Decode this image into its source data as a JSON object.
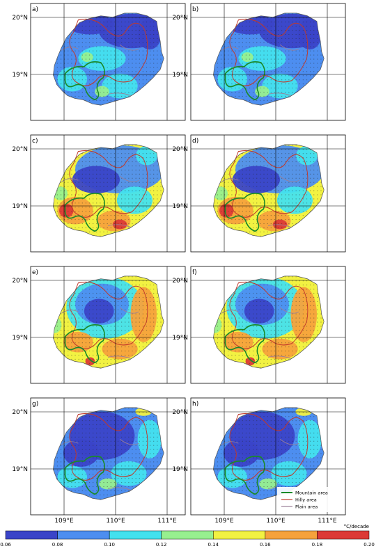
{
  "panels": [
    {
      "label": "a)",
      "variant": 0
    },
    {
      "label": "b)",
      "variant": 0
    },
    {
      "label": "c)",
      "variant": 1
    },
    {
      "label": "d)",
      "variant": 1
    },
    {
      "label": "e)",
      "variant": 2
    },
    {
      "label": "f)",
      "variant": 2
    },
    {
      "label": "g)",
      "variant": 3
    },
    {
      "label": "h)",
      "variant": 3
    }
  ],
  "axes": {
    "lat_labels": [
      "20°N",
      "19°N"
    ],
    "lon_labels": [
      "109°E",
      "110°E",
      "111°E"
    ]
  },
  "legend": {
    "items": [
      {
        "label": "Mountain area",
        "color": "#1a8a2a"
      },
      {
        "label": "Hilly area",
        "color": "#c0392b"
      },
      {
        "label": "Plain area",
        "color": "#9a7f96"
      }
    ]
  },
  "colorbar": {
    "unit": "°C/decade",
    "ticks": [
      "0.06",
      "0.08",
      "0.10",
      "0.12",
      "0.14",
      "0.16",
      "0.18",
      "0.20"
    ],
    "colors": [
      "#3a44c8",
      "#4d8ef0",
      "#43e1ee",
      "#97f08f",
      "#f2f242",
      "#f5a23c",
      "#dc3a36"
    ]
  }
}
